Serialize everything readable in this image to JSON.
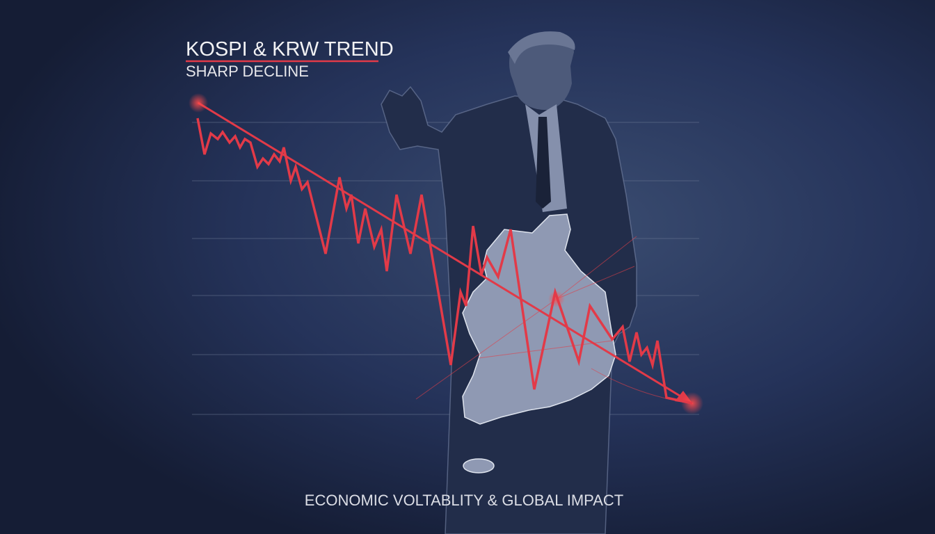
{
  "title": "KOSPI & KRW TREND",
  "subtitle": "SHARP DECLINE",
  "caption": "ECONOMIC VOLTABLITY & GLOBAL IMPACT"
}
